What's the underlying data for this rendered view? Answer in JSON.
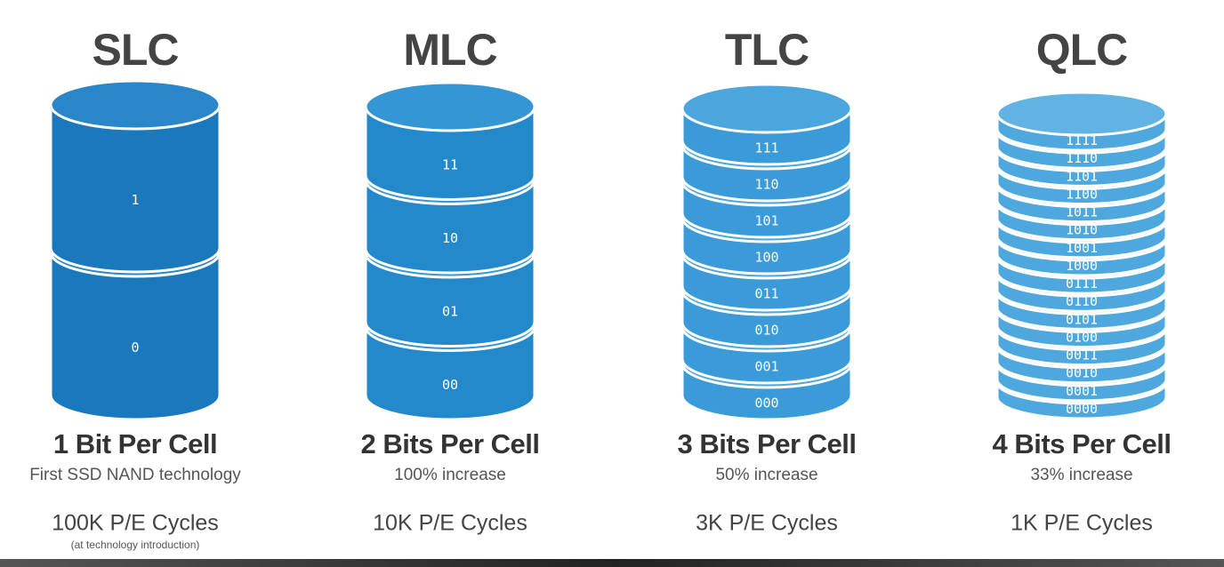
{
  "columns": [
    {
      "title": "SLC",
      "levels": [
        "1",
        "0"
      ],
      "subtitle": "1 Bit Per Cell",
      "note": "First SSD NAND technology",
      "cycles": "100K P/E Cycles",
      "footnote": "(at technology introduction)"
    },
    {
      "title": "MLC",
      "levels": [
        "11",
        "10",
        "01",
        "00"
      ],
      "subtitle": "2 Bits Per Cell",
      "note": "100% increase",
      "cycles": "10K P/E Cycles"
    },
    {
      "title": "TLC",
      "levels": [
        "111",
        "110",
        "101",
        "100",
        "011",
        "010",
        "001",
        "000"
      ],
      "subtitle": "3 Bits Per Cell",
      "note": "50% increase",
      "cycles": "3K P/E Cycles"
    },
    {
      "title": "QLC",
      "levels": [
        "1111",
        "1110",
        "1101",
        "1100",
        "1011",
        "1010",
        "1001",
        "1000",
        "0111",
        "0110",
        "0101",
        "0100",
        "0011",
        "0010",
        "0001",
        "0000"
      ],
      "subtitle": "4 Bits Per Cell",
      "note": "33% increase",
      "cycles": "1K P/E Cycles"
    }
  ]
}
